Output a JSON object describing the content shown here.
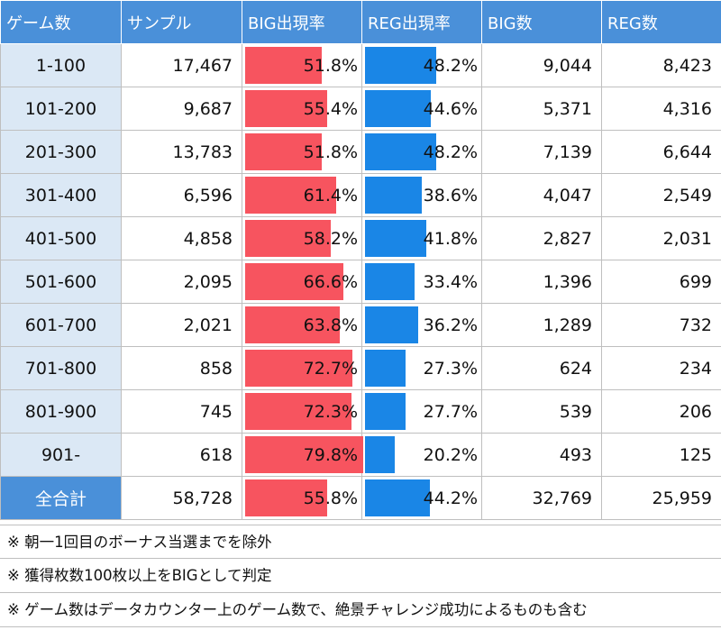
{
  "headers": [
    "ゲーム数",
    "サンプル",
    "BIG出現率",
    "REG出現率",
    "BIG数",
    "REG数"
  ],
  "rows": [
    {
      "games": "1-100",
      "sample": "17,467",
      "big_rate": "51.8%",
      "big_pct": 51.8,
      "reg_rate": "48.2%",
      "reg_pct": 48.2,
      "big": "9,044",
      "reg": "8,423"
    },
    {
      "games": "101-200",
      "sample": "9,687",
      "big_rate": "55.4%",
      "big_pct": 55.4,
      "reg_rate": "44.6%",
      "reg_pct": 44.6,
      "big": "5,371",
      "reg": "4,316"
    },
    {
      "games": "201-300",
      "sample": "13,783",
      "big_rate": "51.8%",
      "big_pct": 51.8,
      "reg_rate": "48.2%",
      "reg_pct": 48.2,
      "big": "7,139",
      "reg": "6,644"
    },
    {
      "games": "301-400",
      "sample": "6,596",
      "big_rate": "61.4%",
      "big_pct": 61.4,
      "reg_rate": "38.6%",
      "reg_pct": 38.6,
      "big": "4,047",
      "reg": "2,549"
    },
    {
      "games": "401-500",
      "sample": "4,858",
      "big_rate": "58.2%",
      "big_pct": 58.2,
      "reg_rate": "41.8%",
      "reg_pct": 41.8,
      "big": "2,827",
      "reg": "2,031"
    },
    {
      "games": "501-600",
      "sample": "2,095",
      "big_rate": "66.6%",
      "big_pct": 66.6,
      "reg_rate": "33.4%",
      "reg_pct": 33.4,
      "big": "1,396",
      "reg": "699"
    },
    {
      "games": "601-700",
      "sample": "2,021",
      "big_rate": "63.8%",
      "big_pct": 63.8,
      "reg_rate": "36.2%",
      "reg_pct": 36.2,
      "big": "1,289",
      "reg": "732"
    },
    {
      "games": "701-800",
      "sample": "858",
      "big_rate": "72.7%",
      "big_pct": 72.7,
      "reg_rate": "27.3%",
      "reg_pct": 27.3,
      "big": "624",
      "reg": "234"
    },
    {
      "games": "801-900",
      "sample": "745",
      "big_rate": "72.3%",
      "big_pct": 72.3,
      "reg_rate": "27.7%",
      "reg_pct": 27.7,
      "big": "539",
      "reg": "206"
    },
    {
      "games": "901-",
      "sample": "618",
      "big_rate": "79.8%",
      "big_pct": 79.8,
      "reg_rate": "20.2%",
      "reg_pct": 20.2,
      "big": "493",
      "reg": "125"
    }
  ],
  "total": {
    "games": "全合計",
    "sample": "58,728",
    "big_rate": "55.8%",
    "big_pct": 55.8,
    "reg_rate": "44.2%",
    "reg_pct": 44.2,
    "big": "32,769",
    "reg": "25,959"
  },
  "notes": [
    "※ 朝一1回目のボーナス当選までを除外",
    "※ 獲得枚数100枚以上をBIGとして判定",
    "※ ゲーム数はデータカウンター上のゲーム数で、絶景チャレンジ成功によるものも含む"
  ],
  "colors": {
    "header_bg": "#4a90d9",
    "game_cell_bg": "#dbe8f5",
    "big_bar": "#f7545f",
    "reg_bar": "#1a86e6"
  }
}
